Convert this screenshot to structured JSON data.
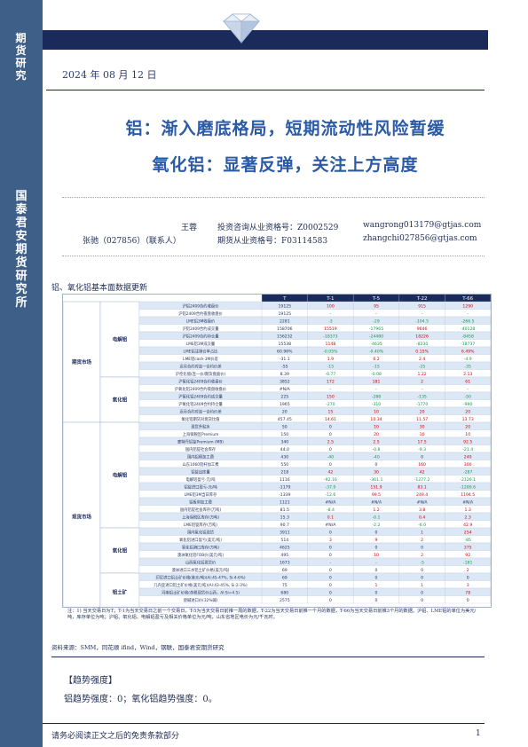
{
  "sidebar": {
    "top": "期货研究",
    "bottom": "国泰君安期货研究所"
  },
  "date": "2024 年 08 月 12 日",
  "title": {
    "line1": "铝：渐入磨底格局，短期流动性风险暂缓",
    "line2": "氧化铝：显著反弹，关注上方高度"
  },
  "authors": [
    {
      "name": "王蓉",
      "role": "投资咨询从业资格号：Z0002529",
      "email": "wangrong013179@gtjas.com"
    },
    {
      "name": "张驰（027856）（联系人）",
      "role": "期货从业资格号：F03114583",
      "email": "zhangchi027856@gtjas.com"
    }
  ],
  "section_title": "铝、氧化铝基本面数据更新",
  "table": {
    "headers": [
      "T",
      "T-1",
      "T-5",
      "T-22",
      "T-66"
    ],
    "groups_l1": [
      "期货市场",
      "现货市场"
    ],
    "groups_l2": [
      "电解铝",
      "氧化铝",
      "电解铝",
      "氧化铝",
      "铝土矿"
    ],
    "rows": [
      {
        "label": "沪铝2409合约收盘价",
        "v": [
          "19125",
          "100",
          "95",
          "915",
          "1290"
        ]
      },
      {
        "label": "沪铝2409合约夜盘收盘价",
        "v": [
          "19125",
          "-",
          "-",
          "-",
          "-"
        ]
      },
      {
        "label": "LME铝3M收盘价",
        "v": [
          "2281",
          "-3",
          "-29",
          "-104.5",
          "-266.5"
        ]
      },
      {
        "label": "沪铝2409合约成交量",
        "v": [
          "158706",
          "15519",
          "-17965",
          "9646",
          "-40128"
        ]
      },
      {
        "label": "沪铝2409合约持仓量",
        "v": [
          "156232",
          "-18373",
          "-24480",
          "18226",
          "-8458"
        ]
      },
      {
        "label": "LME铝3M成交量",
        "v": [
          "15538",
          "1148",
          "-4635",
          "-8230",
          "-18737"
        ]
      },
      {
        "label": "LME铝注销仓单占比",
        "v": [
          "60.96%",
          "-0.05%",
          "-0.40%",
          "0.15%",
          "6.49%"
        ]
      },
      {
        "label": "LME铝cash-3M价差",
        "v": [
          "-31.1",
          "1.9",
          "6.2",
          "2.4",
          "-4.9"
        ]
      },
      {
        "label": "近月合约对连一合约价差",
        "v": [
          "-55",
          "-15",
          "-15",
          "-25",
          "-35"
        ]
      },
      {
        "label": "沪伦比值(连一价/期货盘面价)",
        "v": [
          "8.39",
          "-0.77",
          "-0.08",
          "1.22",
          "2.13"
        ]
      },
      {
        "label": "沪氧化铝2409合约收盘价",
        "v": [
          "3852",
          "172",
          "181",
          "2",
          "61"
        ]
      },
      {
        "label": "沪氧化铝2409合约夜盘收盘价",
        "v": [
          "#N/A",
          "-",
          "-",
          "-",
          "-"
        ]
      },
      {
        "label": "沪氧化铝2409合约成交量",
        "v": [
          "225",
          "150",
          "-288",
          "-135",
          "-50"
        ]
      },
      {
        "label": "沪氧化铝2409合约持仓量",
        "v": [
          "1965",
          "-270",
          "-310",
          "-1770",
          "-990"
        ]
      },
      {
        "label": "近月合约对连一合约价差",
        "v": [
          "20",
          "15",
          "10",
          "20",
          "20"
        ]
      },
      {
        "label": "氧化铝期货对现货比值",
        "v": [
          "457.45",
          "14.61",
          "10.34",
          "11.57",
          "13.73"
        ]
      },
      {
        "label": "现货升贴水",
        "v": [
          "50",
          "0",
          "10",
          "30",
          "20"
        ]
      },
      {
        "label": "上海保税区Premium",
        "v": [
          "150",
          "0",
          "20",
          "10",
          "10"
        ]
      },
      {
        "label": "鹿特丹铝锭Premium (MB)",
        "v": [
          "340",
          "2.5",
          "2.5",
          "17.5",
          "92.5"
        ]
      },
      {
        "label": "国内铝锭社会库存",
        "v": [
          "44.0",
          "0",
          "-0.8",
          "-9.3",
          "-21.4"
        ]
      },
      {
        "label": "国内铝棒加工费",
        "v": [
          "430",
          "-40",
          "-40",
          "0",
          "240"
        ]
      },
      {
        "label": "山东1060铝杆加工费",
        "v": [
          "550",
          "0",
          "0",
          "160",
          "300"
        ]
      },
      {
        "label": "铝锭出库量",
        "v": [
          "218",
          "42",
          "30",
          "42",
          "-287"
        ]
      },
      {
        "label": "电解铝盈亏-元/吨",
        "v": [
          "1116",
          "-92.16",
          "-361.1",
          "-1277.2",
          "-2126.1"
        ]
      },
      {
        "label": "铝锭进口盈亏-元/吨",
        "v": [
          "-1179",
          "-37.9",
          "151.9",
          "83.1",
          "-1289.6"
        ]
      },
      {
        "label": "LME铝3M当日库存",
        "v": [
          "-1339",
          "-12.6",
          "99.5",
          "249.4",
          "1194.5"
        ]
      },
      {
        "label": "铝板带加工费",
        "v": [
          "1121",
          "#N/A",
          "#N/A",
          "#N/A",
          "#N/A"
        ]
      },
      {
        "label": "国内铝锭社会库存(万吨)",
        "v": [
          "81.5",
          "-8.4",
          "1.2",
          "3.8",
          "1.3"
        ]
      },
      {
        "label": "上海保税区库存(万吨)",
        "v": [
          "15.3",
          "0.1",
          "-0.1",
          "0.4",
          "2.3"
        ]
      },
      {
        "label": "LME铝锭库存(万吨)",
        "v": [
          "90.7",
          "#N/A",
          "-2.2",
          "-6.0",
          "42.9"
        ]
      },
      {
        "label": "国内氧化铝现货",
        "v": [
          "3911",
          "0",
          "0",
          "1",
          "254"
        ]
      },
      {
        "label": "氧化铝进口盈亏(美元/吨)",
        "v": [
          "514",
          "3",
          "9",
          "2",
          "-85"
        ]
      },
      {
        "label": "氧化铝港口库存(万吨)",
        "v": [
          "4625",
          "0",
          "0",
          "0",
          "375"
        ]
      },
      {
        "label": "澳洲氧化铝FOB价(美元/吨)",
        "v": [
          "495",
          "0",
          "10",
          "2",
          "92"
        ]
      },
      {
        "label": "山西氧化铝现货价",
        "v": [
          "1673",
          "-",
          "-",
          "-5",
          "-181"
        ]
      },
      {
        "label": "澳洲进口三水铝土矿价格(美元/吨)",
        "v": [
          "69",
          "0",
          "0",
          "0",
          "2"
        ]
      },
      {
        "label": "印尼进口铝土矿价格(美元/吨)(Al:45-47%, Si:4-6%)",
        "v": [
          "69",
          "0",
          "0",
          "0",
          "0"
        ]
      },
      {
        "label": "几内亚进口铝土矿价格(美元/吨)(Al:43-45%, Si:2-3%)",
        "v": [
          "75",
          "0",
          "1",
          "1",
          "3"
        ]
      },
      {
        "label": "河南铝土矿价格(含税现货价山西，Al:Si=4.5)",
        "v": [
          "680",
          "0",
          "0",
          "0",
          "78"
        ]
      },
      {
        "label": "烧碱进口价(32%碱)",
        "v": [
          "2575",
          "0",
          "0",
          "0",
          "0"
        ]
      }
    ]
  },
  "note": "注：1) 当天交易日为T；T-1为当天交易日之前一个交易日，T-5为当天交易日前推一周的数据，T-22为当天交易日前推一个月的数据，T-66为当天交易日前推3个月的数据。沪铝、LME铝的单位为美元/吨，库存单位为吨；沪铝、氧化铝、电解铝盈亏及相关价格单位为元/吨，山东省地区电价为元/千瓦时。",
  "source": "资料来源：SMM，同花顺 ifind，Wind，钢联，国泰君安期货研究",
  "trend_heading": "【趋势强度】",
  "trend_text": "铝趋势强度：0；氧化铝趋势强度：0。",
  "footer_text": "请务必阅读正文之后的免责条款部分",
  "page_number": "1",
  "colors": {
    "navy": "#1a2b5b",
    "sidebar": "#3e5f88",
    "title_blue": "#2b5aa6",
    "cell_blue": "#dde8f6",
    "pos_red": "#d40000",
    "neg_green": "#109a45"
  }
}
